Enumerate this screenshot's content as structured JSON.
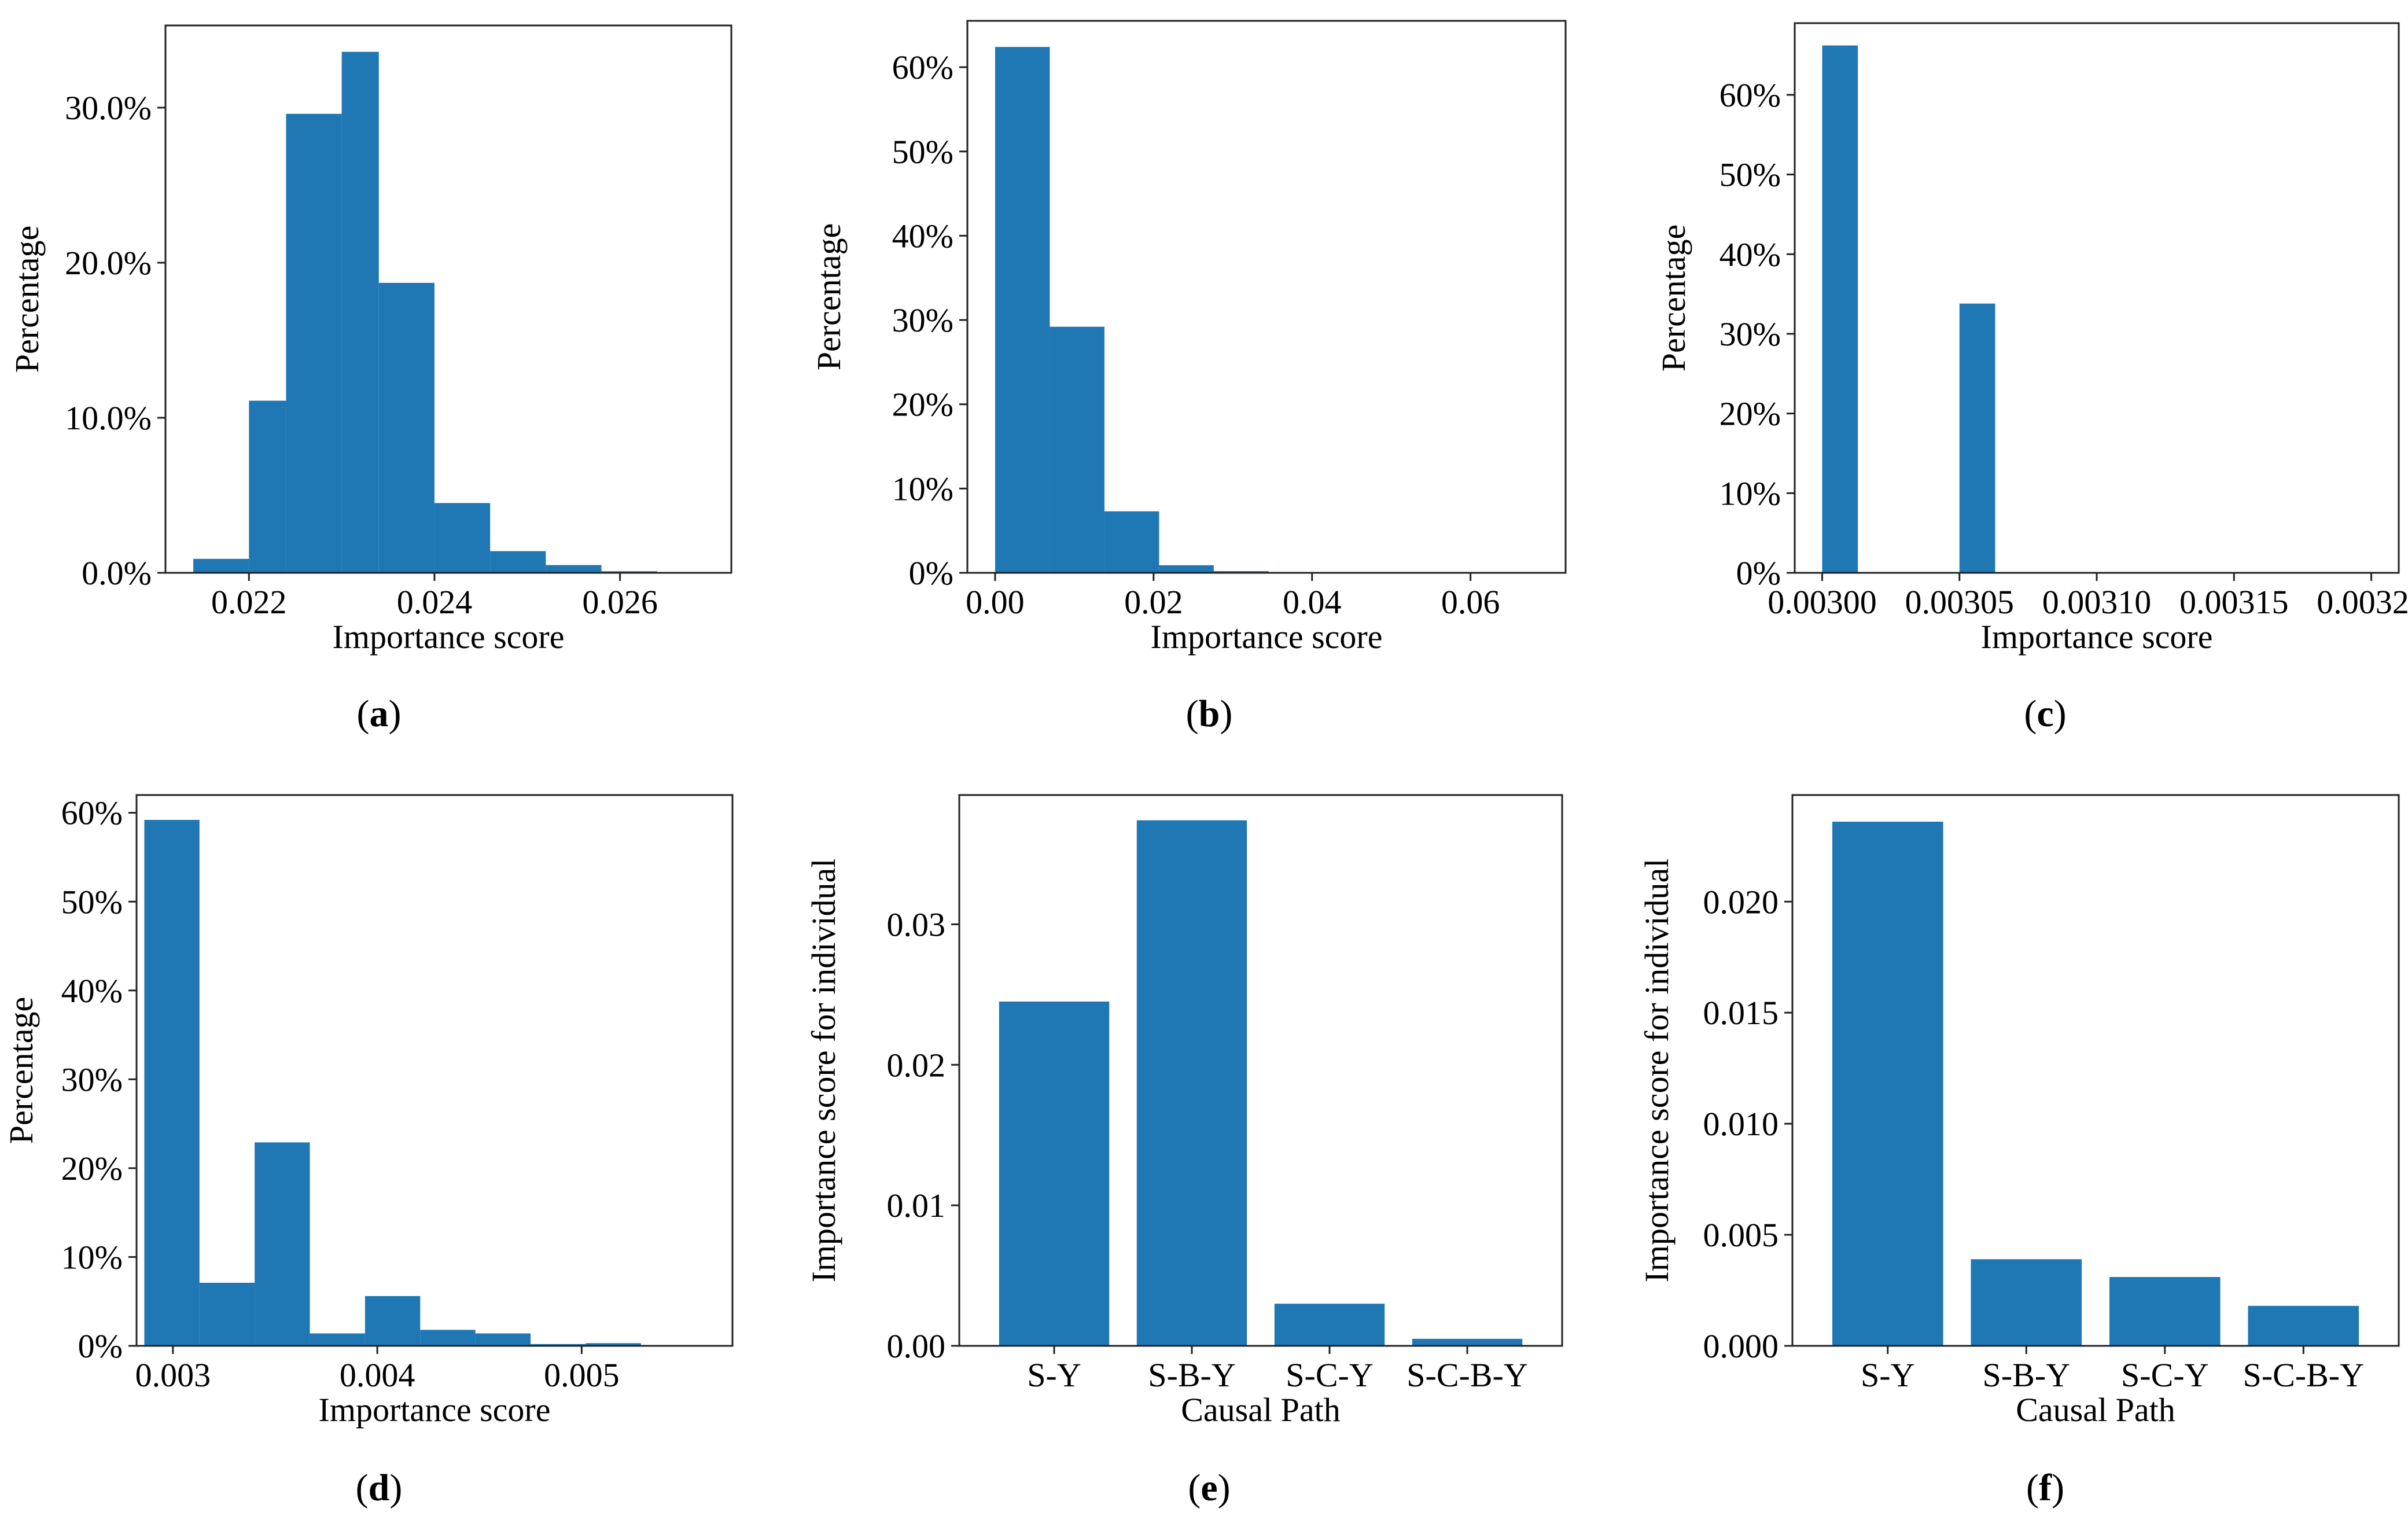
{
  "colors": {
    "bar": "#1f77b4",
    "axis": "#222222"
  },
  "chart_data": [
    {
      "id": "a",
      "type": "bar",
      "subtype": "histogram",
      "caption_letter": "a",
      "xlabel": "Importance score",
      "ylabel": "Percentage",
      "xlim": [
        0.0211,
        0.0272
      ],
      "ylim": [
        0,
        0.353
      ],
      "xticks": [
        0.022,
        0.024,
        0.026
      ],
      "xtick_labels": [
        "0.022",
        "0.024",
        "0.026"
      ],
      "yticks": [
        0,
        0.1,
        0.2,
        0.3
      ],
      "ytick_labels": [
        "0.0%",
        "10.0%",
        "20.0%",
        "30.0%"
      ],
      "bins": [
        {
          "x0": 0.0214,
          "x1": 0.022,
          "value": 0.009
        },
        {
          "x0": 0.022,
          "x1": 0.0224,
          "value": 0.111
        },
        {
          "x0": 0.0224,
          "x1": 0.023,
          "value": 0.296
        },
        {
          "x0": 0.023,
          "x1": 0.0234,
          "value": 0.336
        },
        {
          "x0": 0.0234,
          "x1": 0.024,
          "value": 0.187
        },
        {
          "x0": 0.024,
          "x1": 0.0246,
          "value": 0.045
        },
        {
          "x0": 0.0246,
          "x1": 0.0252,
          "value": 0.014
        },
        {
          "x0": 0.0252,
          "x1": 0.0258,
          "value": 0.005
        },
        {
          "x0": 0.0258,
          "x1": 0.0264,
          "value": 0.001
        }
      ]
    },
    {
      "id": "b",
      "type": "bar",
      "subtype": "histogram",
      "caption_letter": "b",
      "xlabel": "Importance score",
      "ylabel": "Percentage",
      "xlim": [
        -0.0035,
        0.072
      ],
      "ylim": [
        0,
        0.655
      ],
      "xticks": [
        0.0,
        0.02,
        0.04,
        0.06
      ],
      "xtick_labels": [
        "0.00",
        "0.02",
        "0.04",
        "0.06"
      ],
      "yticks": [
        0,
        0.1,
        0.2,
        0.3,
        0.4,
        0.5,
        0.6
      ],
      "ytick_labels": [
        "0%",
        "10%",
        "20%",
        "30%",
        "40%",
        "50%",
        "60%"
      ],
      "bins": [
        {
          "x0": 0.0,
          "x1": 0.0069,
          "value": 0.624
        },
        {
          "x0": 0.0069,
          "x1": 0.0138,
          "value": 0.292
        },
        {
          "x0": 0.0138,
          "x1": 0.0207,
          "value": 0.073
        },
        {
          "x0": 0.0207,
          "x1": 0.0276,
          "value": 0.009
        },
        {
          "x0": 0.0276,
          "x1": 0.0345,
          "value": 0.002
        }
      ]
    },
    {
      "id": "c",
      "type": "bar",
      "subtype": "histogram",
      "caption_letter": "c",
      "xlabel": "Importance score",
      "ylabel": "Percentage",
      "xlim": [
        0.00299,
        0.00321
      ],
      "ylim": [
        0,
        0.69
      ],
      "xticks": [
        0.003,
        0.00305,
        0.0031,
        0.00315,
        0.0032
      ],
      "xtick_labels": [
        "0.00300",
        "0.00305",
        "0.00310",
        "0.00315",
        "0.00320"
      ],
      "yticks": [
        0,
        0.1,
        0.2,
        0.3,
        0.4,
        0.5,
        0.6
      ],
      "ytick_labels": [
        "0%",
        "10%",
        "20%",
        "30%",
        "40%",
        "50%",
        "60%"
      ],
      "bins": [
        {
          "x0": 0.003,
          "x1": 0.003013,
          "value": 0.662
        },
        {
          "x0": 0.00305,
          "x1": 0.003063,
          "value": 0.338
        }
      ]
    },
    {
      "id": "d",
      "type": "bar",
      "subtype": "histogram",
      "caption_letter": "d",
      "xlabel": "Importance score",
      "ylabel": "Percentage",
      "xlim": [
        0.002822,
        0.005738
      ],
      "ylim": [
        0,
        0.62
      ],
      "xticks": [
        0.003,
        0.004,
        0.005
      ],
      "xtick_labels": [
        "0.003",
        "0.004",
        "0.005"
      ],
      "yticks": [
        0,
        0.1,
        0.2,
        0.3,
        0.4,
        0.5,
        0.6
      ],
      "ytick_labels": [
        "0%",
        "10%",
        "20%",
        "30%",
        "40%",
        "50%",
        "60%"
      ],
      "bins": [
        {
          "x0": 0.00286,
          "x1": 0.00313,
          "value": 0.592
        },
        {
          "x0": 0.00313,
          "x1": 0.0034,
          "value": 0.071
        },
        {
          "x0": 0.0034,
          "x1": 0.00367,
          "value": 0.229
        },
        {
          "x0": 0.00367,
          "x1": 0.00394,
          "value": 0.014
        },
        {
          "x0": 0.00394,
          "x1": 0.00421,
          "value": 0.056
        },
        {
          "x0": 0.00421,
          "x1": 0.00448,
          "value": 0.018
        },
        {
          "x0": 0.00448,
          "x1": 0.00475,
          "value": 0.014
        },
        {
          "x0": 0.00475,
          "x1": 0.00502,
          "value": 0.002
        },
        {
          "x0": 0.00502,
          "x1": 0.00529,
          "value": 0.003
        }
      ]
    },
    {
      "id": "e",
      "type": "bar",
      "caption_letter": "e",
      "xlabel": "Causal Path",
      "ylabel": "Importance score for individual",
      "categories": [
        "S-Y",
        "S-B-Y",
        "S-C-Y",
        "S-C-B-Y"
      ],
      "values": [
        0.0245,
        0.0374,
        0.003,
        0.0005
      ],
      "ylim": [
        0,
        0.0392
      ],
      "yticks": [
        0,
        0.01,
        0.02,
        0.03
      ],
      "ytick_labels": [
        "0.00",
        "0.01",
        "0.02",
        "0.03"
      ]
    },
    {
      "id": "f",
      "type": "bar",
      "caption_letter": "f",
      "xlabel": "Causal Path",
      "ylabel": "Importance score for individual",
      "categories": [
        "S-Y",
        "S-B-Y",
        "S-C-Y",
        "S-C-B-Y"
      ],
      "values": [
        0.0236,
        0.0039,
        0.0031,
        0.0018
      ],
      "ylim": [
        0,
        0.0248
      ],
      "yticks": [
        0,
        0.005,
        0.01,
        0.015,
        0.02
      ],
      "ytick_labels": [
        "0.000",
        "0.005",
        "0.010",
        "0.015",
        "0.020"
      ]
    }
  ]
}
